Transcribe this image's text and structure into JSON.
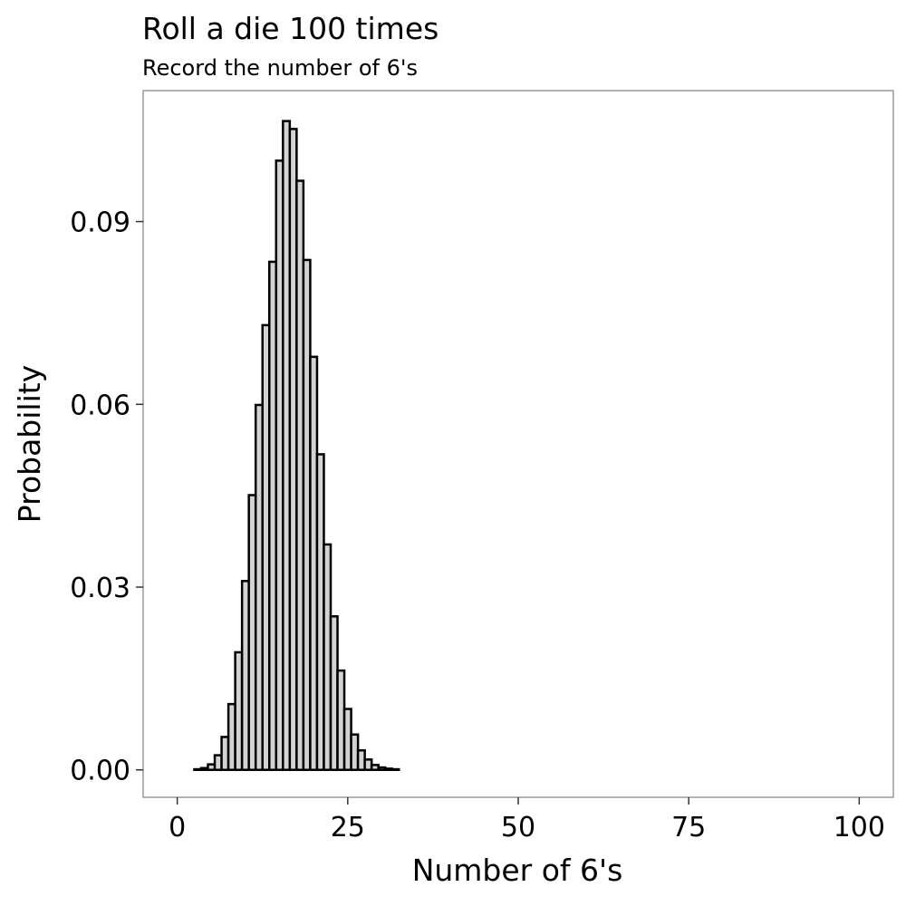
{
  "chart_data": {
    "type": "bar",
    "title": "Roll a die 100 times",
    "subtitle": "Record the number of 6's",
    "xlabel": "Number of 6's",
    "ylabel": "Probability",
    "xlim": [
      -5,
      105
    ],
    "ylim": [
      -0.0045,
      0.1115
    ],
    "x_ticks": [
      0,
      25,
      50,
      75,
      100
    ],
    "x_tick_labels": [
      "0",
      "25",
      "50",
      "75",
      "100"
    ],
    "y_ticks": [
      0.0,
      0.03,
      0.06,
      0.09
    ],
    "y_tick_labels": [
      "0.00",
      "0.03",
      "0.06",
      "0.09"
    ],
    "grid": false,
    "legend": "none",
    "bar_fill": "#d3d3d3",
    "bar_stroke": "#000000",
    "panel_border": "#9a9a9a",
    "x": [
      0,
      1,
      2,
      3,
      4,
      5,
      6,
      7,
      8,
      9,
      10,
      11,
      12,
      13,
      14,
      15,
      16,
      17,
      18,
      19,
      20,
      21,
      22,
      23,
      24,
      25,
      26,
      27,
      28,
      29,
      30,
      31,
      32,
      33,
      34,
      35,
      36,
      37,
      38,
      39,
      40,
      41,
      42,
      43,
      44,
      45,
      46,
      47,
      48,
      49,
      50,
      51,
      52,
      53,
      54,
      55,
      56,
      57,
      58,
      59,
      60,
      61,
      62,
      63,
      64,
      65,
      66,
      67,
      68,
      69,
      70,
      71,
      72,
      73,
      74,
      75,
      76,
      77,
      78,
      79,
      80,
      81,
      82,
      83,
      84,
      85,
      86,
      87,
      88,
      89,
      90,
      91,
      92,
      93,
      94,
      95,
      96,
      97,
      98,
      99,
      100
    ],
    "values": [
      0.0,
      0.0,
      0.0,
      0.0001,
      0.0003,
      0.0009,
      0.0024,
      0.0054,
      0.0108,
      0.0193,
      0.031,
      0.0451,
      0.0599,
      0.073,
      0.0834,
      0.1,
      0.1065,
      0.1052,
      0.0967,
      0.0837,
      0.0678,
      0.0518,
      0.037,
      0.0252,
      0.0163,
      0.01,
      0.0058,
      0.0032,
      0.0017,
      0.0008,
      0.0004,
      0.0002,
      0.0001,
      0.0,
      0.0,
      0.0,
      0.0,
      0.0,
      0.0,
      0.0,
      0.0,
      0.0,
      0.0,
      0.0,
      0.0,
      0.0,
      0.0,
      0.0,
      0.0,
      0.0,
      0.0,
      0.0,
      0.0,
      0.0,
      0.0,
      0.0,
      0.0,
      0.0,
      0.0,
      0.0,
      0.0,
      0.0,
      0.0,
      0.0,
      0.0,
      0.0,
      0.0,
      0.0,
      0.0,
      0.0,
      0.0,
      0.0,
      0.0,
      0.0,
      0.0,
      0.0,
      0.0,
      0.0,
      0.0,
      0.0,
      0.0,
      0.0,
      0.0,
      0.0,
      0.0,
      0.0,
      0.0,
      0.0,
      0.0,
      0.0,
      0.0,
      0.0,
      0.0,
      0.0,
      0.0,
      0.0,
      0.0,
      0.0,
      0.0,
      0.0,
      0.0
    ]
  }
}
